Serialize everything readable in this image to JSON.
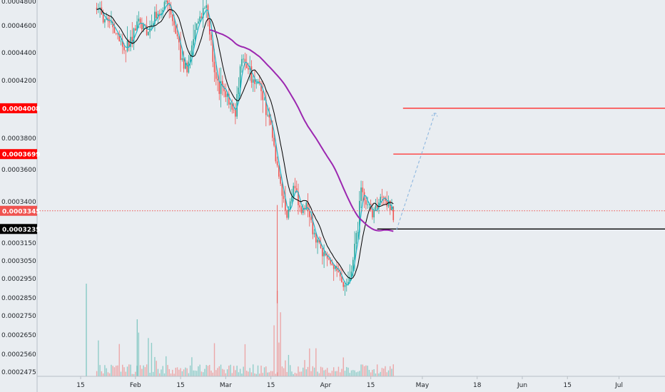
{
  "chart_data": {
    "type": "candlestick",
    "title": "",
    "price_axis": {
      "position": "left",
      "scale": "log",
      "ticks": [
        "0.0004800",
        "0.0004600",
        "0.0004400",
        "0.0004200",
        "0.0003800",
        "0.0003600",
        "0.0003400",
        "0.0003150",
        "0.0003050",
        "0.0002950",
        "0.0002850",
        "0.0002750",
        "0.0002650",
        "0.0002560",
        "0.0002475"
      ]
    },
    "time_axis": {
      "ticks": [
        "15",
        "Feb",
        "15",
        "Mar",
        "15",
        "Apr",
        "15",
        "May",
        "18",
        "Jun",
        "15",
        "Jul"
      ]
    },
    "price_tags": [
      {
        "label": "0.0004008",
        "value": 0.0004008,
        "color": "#ff0000",
        "text_color": "#ffffff"
      },
      {
        "label": "0.0003699",
        "value": 0.0003699,
        "color": "#ff0000",
        "text_color": "#ffffff"
      },
      {
        "label": "0.0003345",
        "value": 0.0003345,
        "color": "#ef5350",
        "text_color": "#ffffff"
      },
      {
        "label": "0.0003235",
        "value": 0.0003235,
        "color": "#000000",
        "text_color": "#ffffff"
      }
    ],
    "horizontal_lines": [
      {
        "value": 0.0004008,
        "color": "#ff3b3b",
        "from_date": "Apr 25"
      },
      {
        "value": 0.0003699,
        "color": "#ff3b3b",
        "from_date": "Apr 22"
      },
      {
        "value": 0.0003345,
        "color": "#ef5350",
        "style": "dotted",
        "from_date": "start"
      },
      {
        "value": 0.0003235,
        "color": "#000000",
        "from_date": "Apr 17"
      }
    ],
    "projection_arrow": {
      "from": {
        "date": "Apr 23",
        "price": 0.000323
      },
      "to": {
        "date": "May 5",
        "price": 0.000398
      },
      "color": "#8fb8e0",
      "style": "dashed"
    },
    "price_path": [
      [
        "Jan 20",
        0.000474
      ],
      [
        "Jan 23",
        0.000462
      ],
      [
        "Jan 26",
        0.000455
      ],
      [
        "Jan 29",
        0.000441
      ],
      [
        "Feb 2",
        0.000463
      ],
      [
        "Feb 5",
        0.000456
      ],
      [
        "Feb 8",
        0.00047
      ],
      [
        "Feb 11",
        0.000478
      ],
      [
        "Feb 14",
        0.000447
      ],
      [
        "Feb 17",
        0.000427
      ],
      [
        "Feb 20",
        0.000462
      ],
      [
        "Feb 23",
        0.000475
      ],
      [
        "Feb 26",
        0.000418
      ],
      [
        "Mar 1",
        0.000409
      ],
      [
        "Mar 4",
        0.000398
      ],
      [
        "Mar 6",
        0.000437
      ],
      [
        "Mar 9",
        0.000424
      ],
      [
        "Mar 12",
        0.000415
      ],
      [
        "Mar 15",
        0.000386
      ],
      [
        "Mar 18",
        0.000352
      ],
      [
        "Mar 20",
        0.000328
      ],
      [
        "Mar 22",
        0.000352
      ],
      [
        "Mar 24",
        0.000335
      ],
      [
        "Mar 26",
        0.000337
      ],
      [
        "Mar 29",
        0.000315
      ],
      [
        "Apr 1",
        0.000307
      ],
      [
        "Apr 3",
        0.000304
      ],
      [
        "Apr 5",
        0.000297
      ],
      [
        "Apr 7",
        0.000289
      ],
      [
        "Apr 9",
        0.000297
      ],
      [
        "Apr 11",
        0.000325
      ],
      [
        "Apr 12",
        0.00035
      ],
      [
        "Apr 14",
        0.000335
      ],
      [
        "Apr 16",
        0.000333
      ],
      [
        "Apr 18",
        0.000343
      ],
      [
        "Apr 20",
        0.000341
      ],
      [
        "Apr 21",
        0.000337
      ],
      [
        "Apr 22",
        0.000334
      ]
    ],
    "moving_averages": [
      {
        "color": "#000000",
        "role": "short"
      },
      {
        "color": "#1fb7c9",
        "role": "fast"
      },
      {
        "color": "#9c27b0",
        "role": "long"
      }
    ],
    "volume": {
      "up_color": "#26a69a",
      "down_color": "#ef5350",
      "peak_dates": [
        "Feb 2",
        "Mar 16",
        "Mar 18"
      ]
    },
    "colors": {
      "background": "#e9edf1",
      "candle_up": "#26a69a",
      "candle_down": "#ef5350"
    }
  }
}
